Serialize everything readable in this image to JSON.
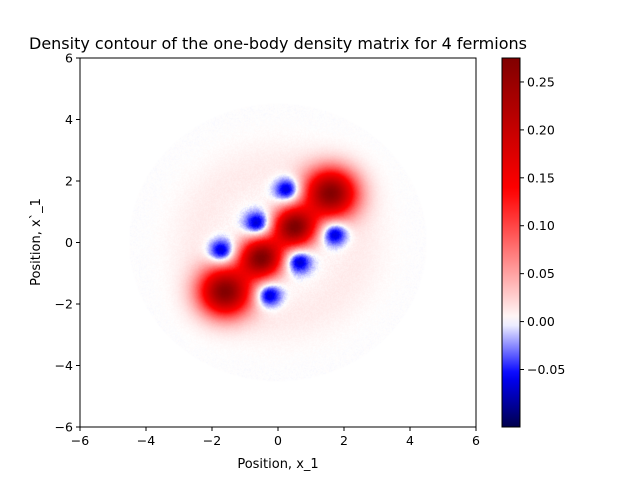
{
  "chart_data": {
    "type": "heatmap",
    "title": "Density contour of the one-body density matrix for 4 fermions",
    "xlabel": "Position, x_1",
    "ylabel": "Position, x`_1",
    "xlim": [
      -6,
      6
    ],
    "ylim": [
      -6,
      6
    ],
    "xticks": [
      -6,
      -4,
      -2,
      0,
      2,
      4,
      6
    ],
    "yticks": [
      -6,
      -4,
      -2,
      0,
      2,
      4,
      6
    ],
    "xtick_labels": [
      "−6",
      "−4",
      "−2",
      "0",
      "2",
      "4",
      "6"
    ],
    "ytick_labels": [
      "−6",
      "−4",
      "−2",
      "0",
      "2",
      "4",
      "6"
    ],
    "colormap": "seismic",
    "colorbar": {
      "vmin": -0.11,
      "vmax": 0.275,
      "ticks": [
        -0.05,
        0.0,
        0.05,
        0.1,
        0.15,
        0.2,
        0.25
      ],
      "tick_labels": [
        "−0.05",
        "0.00",
        "0.05",
        "0.10",
        "0.15",
        "0.20",
        "0.25"
      ]
    },
    "positive_lobes": [
      {
        "x": -0.5,
        "y": -0.5,
        "value": 0.27
      },
      {
        "x": 0.5,
        "y": 0.5,
        "value": 0.27
      },
      {
        "x": -1.6,
        "y": -1.6,
        "value": 0.26
      },
      {
        "x": 1.6,
        "y": 1.6,
        "value": 0.26
      }
    ],
    "negative_lobes": [
      {
        "x": -1.7,
        "y": -0.3,
        "value": -0.09
      },
      {
        "x": -0.6,
        "y": 0.6,
        "value": -0.09
      },
      {
        "x": 0.3,
        "y": 1.7,
        "value": -0.09
      },
      {
        "x": 1.7,
        "y": 0.3,
        "value": -0.09
      },
      {
        "x": 0.6,
        "y": -0.6,
        "value": -0.09
      },
      {
        "x": -0.3,
        "y": -1.7,
        "value": -0.09
      }
    ],
    "grid": false
  }
}
